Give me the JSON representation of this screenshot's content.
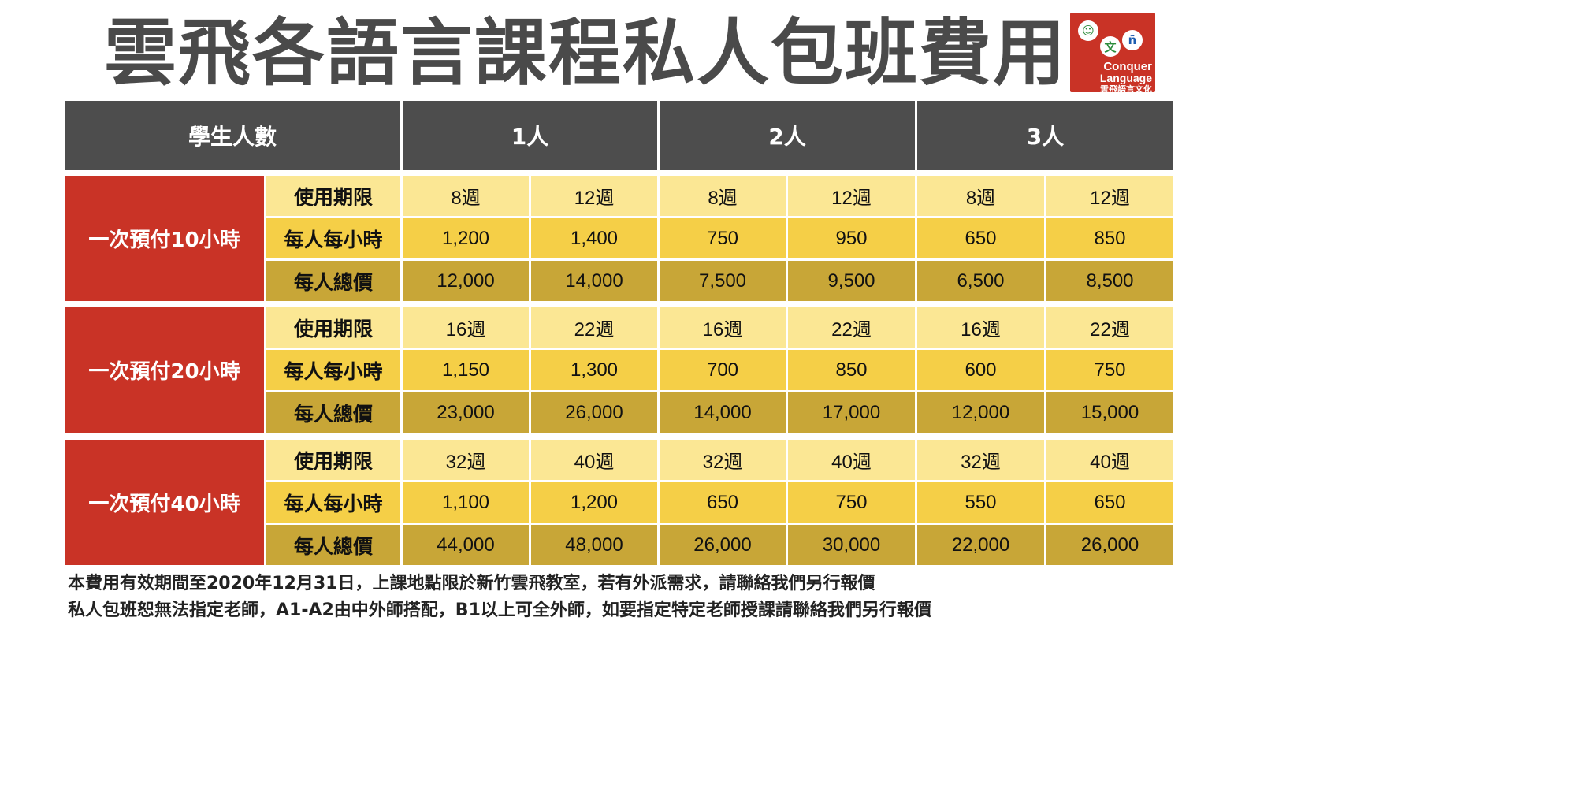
{
  "title": "雲飛各語言課程私人包班費用",
  "logo": {
    "bubble1": "☺",
    "bubble2": "文",
    "bubble3": "ñ",
    "line1": "Conquer",
    "line2": "Language",
    "line3": "雲飛語言文化"
  },
  "header": {
    "corner": "學生人數",
    "columns": [
      "1人",
      "2人",
      "3人"
    ]
  },
  "row_labels": [
    "使用期限",
    "每人每小時",
    "每人總價"
  ],
  "groups": [
    {
      "name": "一次預付10小時",
      "rows": [
        [
          "8週",
          "12週",
          "8週",
          "12週",
          "8週",
          "12週"
        ],
        [
          "1,200",
          "1,400",
          "750",
          "950",
          "650",
          "850"
        ],
        [
          "12,000",
          "14,000",
          "7,500",
          "9,500",
          "6,500",
          "8,500"
        ]
      ]
    },
    {
      "name": "一次預付20小時",
      "rows": [
        [
          "16週",
          "22週",
          "16週",
          "22週",
          "16週",
          "22週"
        ],
        [
          "1,150",
          "1,300",
          "700",
          "850",
          "600",
          "750"
        ],
        [
          "23,000",
          "26,000",
          "14,000",
          "17,000",
          "12,000",
          "15,000"
        ]
      ]
    },
    {
      "name": "一次預付40小時",
      "rows": [
        [
          "32週",
          "40週",
          "32週",
          "40週",
          "32週",
          "40週"
        ],
        [
          "1,100",
          "1,200",
          "650",
          "750",
          "550",
          "650"
        ],
        [
          "44,000",
          "48,000",
          "26,000",
          "30,000",
          "22,000",
          "26,000"
        ]
      ]
    }
  ],
  "notes": [
    "本費用有效期間至2020年12月31日，上課地點限於新竹雲飛教室，若有外派需求，請聯絡我們另行報價",
    "私人包班恕無法指定老師，A1-A2由中外師搭配，B1以上可全外師，如要指定特定老師授課請聯絡我們另行報價"
  ],
  "colors": {
    "header_bg": "#4d4d4d",
    "group_bg": "#c93326",
    "row_light": "#fbe794",
    "row_mid": "#f5cf47",
    "row_dark": "#c8a637"
  }
}
